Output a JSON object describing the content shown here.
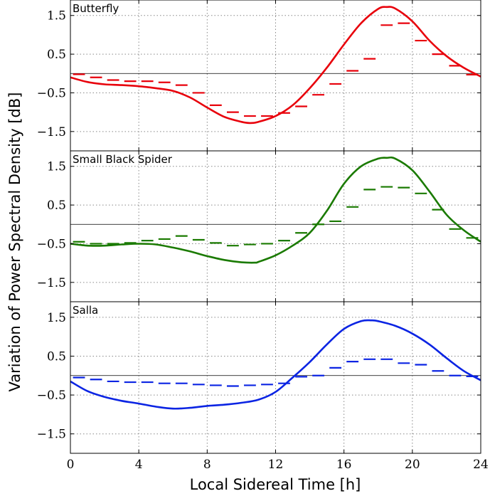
{
  "chart_data": {
    "type": "line",
    "xlabel": "Local Sidereal Time [h]",
    "ylabel": "Variation of Power Spectral Density [dB]",
    "xlim": [
      0,
      24
    ],
    "xticks": [
      "0",
      "4",
      "8",
      "12",
      "16",
      "20",
      "24"
    ],
    "yticks": [
      "1.5",
      "0.5",
      "−0.5",
      "−1.5"
    ],
    "grid": true,
    "panels": [
      {
        "title": "Butterfly",
        "color": "#e8000b",
        "ylim": [
          -2.0,
          1.9
        ],
        "curve": {
          "x": [
            0,
            1,
            2,
            3,
            4,
            5,
            6,
            7,
            8,
            9,
            10,
            10.5,
            11,
            12,
            13,
            14,
            15,
            16,
            17,
            18,
            18.5,
            19,
            20,
            21,
            22,
            23,
            24
          ],
          "y": [
            -0.1,
            -0.22,
            -0.28,
            -0.3,
            -0.33,
            -0.38,
            -0.45,
            -0.62,
            -0.88,
            -1.12,
            -1.25,
            -1.28,
            -1.25,
            -1.1,
            -0.82,
            -0.38,
            0.15,
            0.75,
            1.3,
            1.67,
            1.72,
            1.68,
            1.35,
            0.85,
            0.45,
            0.15,
            -0.08
          ]
        },
        "bins": {
          "x": [
            0.5,
            1.5,
            2.5,
            3.5,
            4.5,
            5.5,
            6.5,
            7.5,
            8.5,
            9.5,
            10.5,
            11.5,
            12.5,
            13.5,
            14.5,
            15.5,
            16.5,
            17.5,
            18.5,
            19.5,
            20.5,
            21.5,
            22.5,
            23.5
          ],
          "y": [
            -0.02,
            -0.1,
            -0.17,
            -0.2,
            -0.2,
            -0.23,
            -0.3,
            -0.5,
            -0.82,
            -1.0,
            -1.1,
            -1.1,
            -1.02,
            -0.85,
            -0.55,
            -0.27,
            0.07,
            0.38,
            1.25,
            1.3,
            0.85,
            0.5,
            0.2,
            -0.03
          ]
        }
      },
      {
        "title": "Small Black Spider",
        "color": "#1a7a00",
        "ylim": [
          -2.0,
          1.9
        ],
        "curve": {
          "x": [
            0,
            1,
            2,
            3,
            4,
            5,
            6,
            7,
            8,
            9,
            10,
            10.8,
            11,
            12,
            13,
            14,
            15,
            16,
            17,
            18,
            18.5,
            19,
            20,
            21,
            22,
            23,
            24
          ],
          "y": [
            -0.5,
            -0.55,
            -0.55,
            -0.52,
            -0.5,
            -0.52,
            -0.6,
            -0.7,
            -0.82,
            -0.92,
            -0.98,
            -0.99,
            -0.97,
            -0.8,
            -0.55,
            -0.22,
            0.35,
            1.05,
            1.5,
            1.7,
            1.72,
            1.7,
            1.4,
            0.85,
            0.25,
            -0.15,
            -0.45
          ]
        },
        "bins": {
          "x": [
            0.5,
            1.5,
            2.5,
            3.5,
            4.5,
            5.5,
            6.5,
            7.5,
            8.5,
            9.5,
            10.5,
            11.5,
            12.5,
            13.5,
            14.5,
            15.5,
            16.5,
            17.5,
            18.5,
            19.5,
            20.5,
            21.5,
            22.5,
            23.5
          ],
          "y": [
            -0.45,
            -0.5,
            -0.5,
            -0.48,
            -0.42,
            -0.38,
            -0.3,
            -0.4,
            -0.48,
            -0.55,
            -0.52,
            -0.5,
            -0.42,
            -0.22,
            -0.0,
            0.08,
            0.45,
            0.9,
            0.97,
            0.95,
            0.8,
            0.38,
            -0.12,
            -0.35
          ]
        }
      },
      {
        "title": "Salla",
        "color": "#0b24e3",
        "ylim": [
          -2.0,
          1.9
        ],
        "curve": {
          "x": [
            0,
            1,
            2,
            3,
            4,
            5,
            6,
            7,
            8,
            9,
            10,
            11,
            12,
            13,
            14,
            15,
            16,
            17,
            17.6,
            18,
            19,
            20,
            21,
            22,
            23,
            24
          ],
          "y": [
            -0.15,
            -0.4,
            -0.55,
            -0.65,
            -0.72,
            -0.8,
            -0.85,
            -0.83,
            -0.78,
            -0.75,
            -0.7,
            -0.62,
            -0.42,
            -0.05,
            0.35,
            0.8,
            1.2,
            1.4,
            1.42,
            1.4,
            1.28,
            1.08,
            0.8,
            0.45,
            0.12,
            -0.12
          ]
        },
        "bins": {
          "x": [
            0.5,
            1.5,
            2.5,
            3.5,
            4.5,
            5.5,
            6.5,
            7.5,
            8.5,
            9.5,
            10.5,
            11.5,
            12.5,
            13.5,
            14.5,
            15.5,
            16.5,
            17.5,
            18.5,
            19.5,
            20.5,
            21.5,
            22.5,
            23.5
          ],
          "y": [
            -0.05,
            -0.1,
            -0.15,
            -0.17,
            -0.17,
            -0.2,
            -0.2,
            -0.23,
            -0.25,
            -0.27,
            -0.25,
            -0.23,
            -0.2,
            -0.03,
            0.0,
            0.2,
            0.36,
            0.42,
            0.42,
            0.32,
            0.28,
            0.12,
            0.0,
            -0.02
          ]
        }
      }
    ]
  }
}
